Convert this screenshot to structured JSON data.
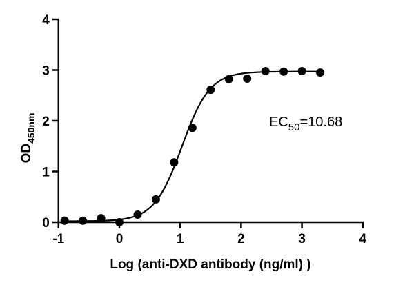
{
  "chart_data": {
    "type": "scatter",
    "title": "",
    "xlabel": "Log (anti-DXD antibody (ng/ml) )",
    "ylabel": "OD",
    "ylabel_subscript": "450nm",
    "xlim": [
      -1,
      4
    ],
    "ylim": [
      0,
      4
    ],
    "xticks": [
      -1,
      0,
      1,
      2,
      3,
      4
    ],
    "yticks": [
      0,
      1,
      2,
      3,
      4
    ],
    "grid": false,
    "legend": null,
    "series": [
      {
        "name": "anti-DXD antibody",
        "marker": "circle",
        "fit": "4PL sigmoidal",
        "x": [
          -0.9,
          -0.6,
          -0.3,
          0.0,
          0.3,
          0.6,
          0.9,
          1.2,
          1.5,
          1.8,
          2.1,
          2.4,
          2.7,
          3.0,
          3.3
        ],
        "y": [
          0.03,
          0.03,
          0.08,
          0.0,
          0.15,
          0.45,
          1.18,
          1.86,
          2.61,
          2.82,
          2.83,
          2.98,
          2.97,
          2.98,
          2.95
        ]
      }
    ],
    "fit_params": {
      "bottom": 0.02,
      "top": 2.97,
      "log_ec50": 1.0286,
      "hill": 1.9
    },
    "annotation": {
      "text": "EC",
      "subscript": "50",
      "suffix": "=10.68"
    }
  },
  "labels": {
    "x_axis_title": "Log (anti-DXD antibody (ng/ml) )",
    "y_axis_title": "OD",
    "y_axis_subscript": "450nm",
    "ec50_prefix": "EC",
    "ec50_sub": "50",
    "ec50_value": "=10.68"
  }
}
